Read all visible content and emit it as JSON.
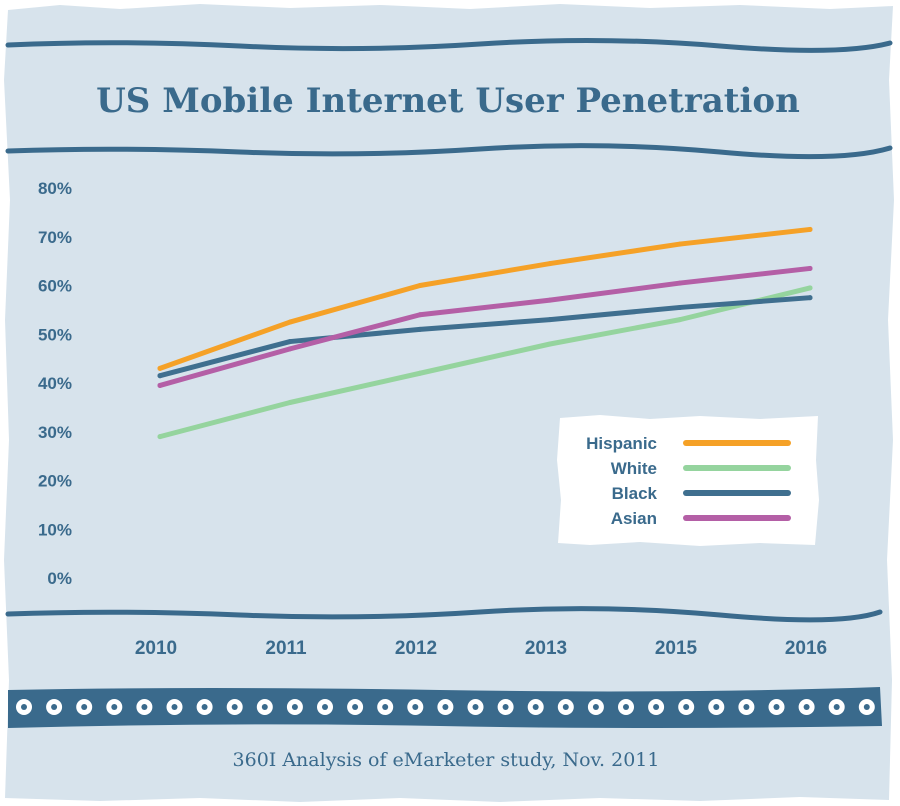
{
  "chart_data": {
    "type": "line",
    "title": "US Mobile Internet User Penetration",
    "x": [
      "2010",
      "2011",
      "2012",
      "2013",
      "2015",
      "2016"
    ],
    "y_ticks": [
      "80%",
      "70%",
      "60%",
      "50%",
      "40%",
      "30%",
      "20%",
      "10%",
      "0%"
    ],
    "ylim": [
      0,
      80
    ],
    "grid": false,
    "legend_position": "bottom-right",
    "series": [
      {
        "name": "Hispanic",
        "color": "#f5a127",
        "values": [
          43,
          52.5,
          60,
          64.5,
          68.5,
          71.5
        ]
      },
      {
        "name": "White",
        "color": "#95d49e",
        "values": [
          29,
          36,
          42,
          48,
          53,
          59.5
        ]
      },
      {
        "name": "Black",
        "color": "#3f6f8f",
        "values": [
          41.5,
          48.5,
          51,
          53,
          55.5,
          57.5
        ]
      },
      {
        "name": "Asian",
        "color": "#b45fa6",
        "values": [
          39.5,
          47,
          54,
          57,
          60.5,
          63.5
        ]
      }
    ]
  },
  "source": "360I Analysis of eMarketer study, Nov. 2011",
  "colors": {
    "background": "#d7e3ec",
    "accent": "#3a6a8c",
    "legend_bg": "#ffffff"
  }
}
